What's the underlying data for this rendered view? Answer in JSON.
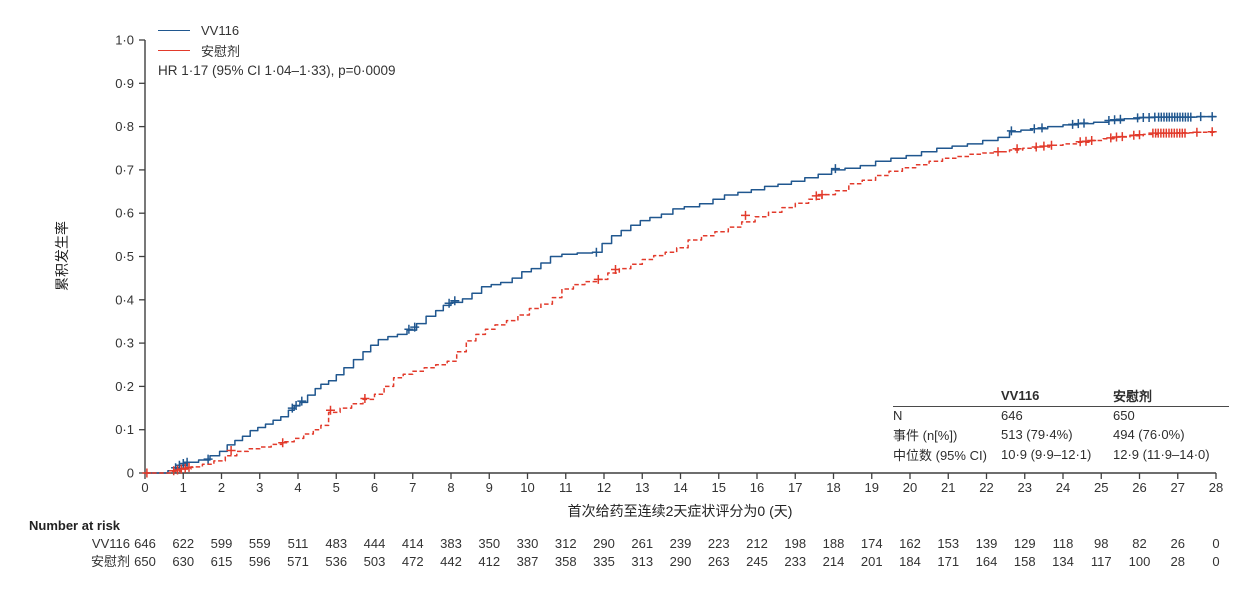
{
  "colors": {
    "vv116_blue": "#20578f",
    "placebo_red": "#e23a2b",
    "axis": "#3f3f3f",
    "text": "#333333"
  },
  "legend": {
    "items": [
      {
        "label": "VV116",
        "color": "#20578f",
        "style": "solid"
      },
      {
        "label": "安慰剂",
        "color": "#e23a2b",
        "style": "solid"
      }
    ]
  },
  "annotation": "HR 1·17 (95% CI 1·04–1·33), p=0·0009",
  "chart_data": {
    "type": "line",
    "subtype": "kaplan-meier-cumulative-incidence",
    "grid": false,
    "legend_position": "top-left",
    "x_axis": {
      "label": "首次给药至连续2天症状评分为0 (天)",
      "range": [
        0,
        28
      ],
      "ticks": [
        0,
        1,
        2,
        3,
        4,
        5,
        6,
        7,
        8,
        9,
        10,
        11,
        12,
        13,
        14,
        15,
        16,
        17,
        18,
        19,
        20,
        21,
        22,
        23,
        24,
        25,
        26,
        27,
        28
      ]
    },
    "y_axis": {
      "label": "累积发生率",
      "range": [
        0,
        1
      ],
      "tick_values": [
        0,
        0.1,
        0.2,
        0.3,
        0.4,
        0.5,
        0.6,
        0.7,
        0.8,
        0.9,
        1.0
      ],
      "tick_labels": [
        "0",
        "0·1",
        "0·2",
        "0·3",
        "0·4",
        "0·5",
        "0·6",
        "0·7",
        "0·8",
        "0·9",
        "1·0"
      ]
    },
    "series": [
      {
        "name": "VV116",
        "color": "#20578f",
        "dash": "solid",
        "points": [
          [
            0,
            0
          ],
          [
            0.6,
            0.005
          ],
          [
            0.8,
            0.01
          ],
          [
            0.95,
            0.018
          ],
          [
            1.1,
            0.025
          ],
          [
            1.4,
            0.03
          ],
          [
            1.7,
            0.04
          ],
          [
            1.95,
            0.05
          ],
          [
            2.15,
            0.065
          ],
          [
            2.35,
            0.075
          ],
          [
            2.55,
            0.085
          ],
          [
            2.75,
            0.098
          ],
          [
            2.95,
            0.105
          ],
          [
            3.15,
            0.113
          ],
          [
            3.35,
            0.122
          ],
          [
            3.55,
            0.13
          ],
          [
            3.75,
            0.145
          ],
          [
            3.9,
            0.155
          ],
          [
            4.05,
            0.163
          ],
          [
            4.25,
            0.18
          ],
          [
            4.45,
            0.195
          ],
          [
            4.6,
            0.205
          ],
          [
            4.8,
            0.213
          ],
          [
            5.0,
            0.227
          ],
          [
            5.2,
            0.243
          ],
          [
            5.45,
            0.262
          ],
          [
            5.7,
            0.28
          ],
          [
            5.9,
            0.295
          ],
          [
            6.1,
            0.308
          ],
          [
            6.35,
            0.315
          ],
          [
            6.6,
            0.32
          ],
          [
            6.85,
            0.33
          ],
          [
            7.1,
            0.345
          ],
          [
            7.35,
            0.362
          ],
          [
            7.6,
            0.375
          ],
          [
            7.8,
            0.387
          ],
          [
            8.0,
            0.394
          ],
          [
            8.3,
            0.402
          ],
          [
            8.55,
            0.415
          ],
          [
            8.8,
            0.43
          ],
          [
            9.05,
            0.435
          ],
          [
            9.3,
            0.44
          ],
          [
            9.6,
            0.45
          ],
          [
            9.85,
            0.465
          ],
          [
            10.1,
            0.472
          ],
          [
            10.35,
            0.485
          ],
          [
            10.6,
            0.5
          ],
          [
            10.9,
            0.505
          ],
          [
            11.3,
            0.508
          ],
          [
            11.7,
            0.51
          ],
          [
            11.95,
            0.53
          ],
          [
            12.2,
            0.548
          ],
          [
            12.45,
            0.56
          ],
          [
            12.7,
            0.572
          ],
          [
            12.95,
            0.583
          ],
          [
            13.2,
            0.59
          ],
          [
            13.5,
            0.598
          ],
          [
            13.8,
            0.61
          ],
          [
            14.1,
            0.615
          ],
          [
            14.5,
            0.622
          ],
          [
            14.85,
            0.632
          ],
          [
            15.15,
            0.642
          ],
          [
            15.5,
            0.648
          ],
          [
            15.85,
            0.654
          ],
          [
            16.2,
            0.662
          ],
          [
            16.55,
            0.667
          ],
          [
            16.9,
            0.674
          ],
          [
            17.25,
            0.682
          ],
          [
            17.6,
            0.69
          ],
          [
            17.95,
            0.7
          ],
          [
            18.3,
            0.704
          ],
          [
            18.7,
            0.71
          ],
          [
            19.1,
            0.72
          ],
          [
            19.5,
            0.727
          ],
          [
            19.9,
            0.733
          ],
          [
            20.3,
            0.742
          ],
          [
            20.7,
            0.75
          ],
          [
            21.1,
            0.755
          ],
          [
            21.5,
            0.76
          ],
          [
            21.9,
            0.768
          ],
          [
            22.3,
            0.775
          ],
          [
            22.6,
            0.788
          ],
          [
            22.9,
            0.792
          ],
          [
            23.2,
            0.795
          ],
          [
            23.6,
            0.8
          ],
          [
            24.0,
            0.804
          ],
          [
            24.4,
            0.807
          ],
          [
            24.8,
            0.81
          ],
          [
            25.2,
            0.814
          ],
          [
            25.6,
            0.818
          ],
          [
            26.0,
            0.821
          ],
          [
            26.4,
            0.822
          ],
          [
            27.0,
            0.822
          ],
          [
            27.5,
            0.823
          ],
          [
            28,
            0.823
          ]
        ],
        "censor_marks": [
          [
            0.8,
            0.012
          ],
          [
            0.9,
            0.018
          ],
          [
            1.0,
            0.022
          ],
          [
            1.1,
            0.025
          ],
          [
            1.65,
            0.032
          ],
          [
            3.85,
            0.15
          ],
          [
            3.95,
            0.156
          ],
          [
            4.1,
            0.166
          ],
          [
            6.9,
            0.332
          ],
          [
            7.05,
            0.337
          ],
          [
            7.95,
            0.392
          ],
          [
            8.1,
            0.398
          ],
          [
            11.8,
            0.51
          ],
          [
            18.05,
            0.703
          ],
          [
            22.65,
            0.79
          ],
          [
            23.25,
            0.795
          ],
          [
            23.45,
            0.797
          ],
          [
            24.25,
            0.805
          ],
          [
            24.4,
            0.807
          ],
          [
            24.55,
            0.808
          ],
          [
            25.2,
            0.814
          ],
          [
            25.35,
            0.816
          ],
          [
            25.5,
            0.817
          ],
          [
            25.95,
            0.82
          ],
          [
            26.1,
            0.821
          ],
          [
            26.25,
            0.821
          ],
          [
            26.4,
            0.822
          ],
          [
            26.5,
            0.822
          ],
          [
            26.57,
            0.822
          ],
          [
            26.64,
            0.822
          ],
          [
            26.71,
            0.822
          ],
          [
            26.78,
            0.822
          ],
          [
            26.85,
            0.822
          ],
          [
            26.92,
            0.822
          ],
          [
            26.99,
            0.822
          ],
          [
            27.06,
            0.822
          ],
          [
            27.13,
            0.822
          ],
          [
            27.2,
            0.822
          ],
          [
            27.27,
            0.822
          ],
          [
            27.34,
            0.822
          ],
          [
            27.6,
            0.823
          ],
          [
            27.9,
            0.823
          ]
        ]
      },
      {
        "name": "安慰剂",
        "color": "#e23a2b",
        "dash": "dashed",
        "points": [
          [
            0,
            0
          ],
          [
            0.7,
            0.004
          ],
          [
            0.95,
            0.009
          ],
          [
            1.2,
            0.014
          ],
          [
            1.5,
            0.02
          ],
          [
            1.8,
            0.028
          ],
          [
            2.1,
            0.04
          ],
          [
            2.4,
            0.05
          ],
          [
            2.7,
            0.056
          ],
          [
            3.0,
            0.06
          ],
          [
            3.3,
            0.066
          ],
          [
            3.6,
            0.072
          ],
          [
            3.9,
            0.08
          ],
          [
            4.15,
            0.09
          ],
          [
            4.4,
            0.1
          ],
          [
            4.6,
            0.11
          ],
          [
            4.8,
            0.14
          ],
          [
            5.1,
            0.15
          ],
          [
            5.4,
            0.16
          ],
          [
            5.7,
            0.17
          ],
          [
            6.0,
            0.182
          ],
          [
            6.25,
            0.2
          ],
          [
            6.5,
            0.22
          ],
          [
            6.75,
            0.228
          ],
          [
            7.0,
            0.235
          ],
          [
            7.3,
            0.243
          ],
          [
            7.6,
            0.25
          ],
          [
            7.9,
            0.258
          ],
          [
            8.15,
            0.28
          ],
          [
            8.4,
            0.305
          ],
          [
            8.65,
            0.32
          ],
          [
            8.9,
            0.332
          ],
          [
            9.15,
            0.342
          ],
          [
            9.45,
            0.352
          ],
          [
            9.75,
            0.365
          ],
          [
            10.05,
            0.38
          ],
          [
            10.35,
            0.39
          ],
          [
            10.65,
            0.405
          ],
          [
            10.9,
            0.425
          ],
          [
            11.2,
            0.435
          ],
          [
            11.5,
            0.442
          ],
          [
            11.8,
            0.447
          ],
          [
            12.1,
            0.462
          ],
          [
            12.4,
            0.472
          ],
          [
            12.7,
            0.482
          ],
          [
            13.0,
            0.493
          ],
          [
            13.3,
            0.502
          ],
          [
            13.6,
            0.51
          ],
          [
            13.9,
            0.52
          ],
          [
            14.2,
            0.538
          ],
          [
            14.55,
            0.548
          ],
          [
            14.9,
            0.557
          ],
          [
            15.25,
            0.568
          ],
          [
            15.6,
            0.58
          ],
          [
            15.95,
            0.592
          ],
          [
            16.3,
            0.602
          ],
          [
            16.65,
            0.613
          ],
          [
            17.0,
            0.623
          ],
          [
            17.35,
            0.632
          ],
          [
            17.7,
            0.643
          ],
          [
            18.05,
            0.652
          ],
          [
            18.4,
            0.668
          ],
          [
            18.75,
            0.676
          ],
          [
            19.1,
            0.687
          ],
          [
            19.45,
            0.697
          ],
          [
            19.8,
            0.705
          ],
          [
            20.15,
            0.712
          ],
          [
            20.5,
            0.72
          ],
          [
            20.85,
            0.727
          ],
          [
            21.2,
            0.731
          ],
          [
            21.55,
            0.736
          ],
          [
            21.9,
            0.739
          ],
          [
            22.25,
            0.742
          ],
          [
            22.6,
            0.746
          ],
          [
            22.95,
            0.75
          ],
          [
            23.3,
            0.753
          ],
          [
            23.65,
            0.757
          ],
          [
            24.0,
            0.76
          ],
          [
            24.35,
            0.764
          ],
          [
            24.7,
            0.768
          ],
          [
            25.05,
            0.772
          ],
          [
            25.4,
            0.776
          ],
          [
            25.75,
            0.779
          ],
          [
            26.1,
            0.782
          ],
          [
            26.45,
            0.785
          ],
          [
            27.0,
            0.786
          ],
          [
            27.5,
            0.787
          ],
          [
            28,
            0.788
          ]
        ],
        "censor_marks": [
          [
            0.05,
            0.0
          ],
          [
            0.75,
            0.005
          ],
          [
            0.85,
            0.007
          ],
          [
            0.95,
            0.009
          ],
          [
            1.05,
            0.011
          ],
          [
            1.15,
            0.013
          ],
          [
            2.25,
            0.052
          ],
          [
            3.6,
            0.07
          ],
          [
            4.85,
            0.145
          ],
          [
            5.75,
            0.172
          ],
          [
            11.85,
            0.447
          ],
          [
            12.3,
            0.47
          ],
          [
            15.7,
            0.595
          ],
          [
            17.55,
            0.64
          ],
          [
            17.7,
            0.643
          ],
          [
            22.3,
            0.742
          ],
          [
            22.8,
            0.749
          ],
          [
            23.3,
            0.753
          ],
          [
            23.5,
            0.755
          ],
          [
            23.7,
            0.757
          ],
          [
            24.45,
            0.765
          ],
          [
            24.6,
            0.766
          ],
          [
            24.75,
            0.768
          ],
          [
            25.25,
            0.774
          ],
          [
            25.4,
            0.776
          ],
          [
            25.55,
            0.777
          ],
          [
            25.85,
            0.78
          ],
          [
            26.0,
            0.781
          ],
          [
            26.35,
            0.785
          ],
          [
            26.42,
            0.785
          ],
          [
            26.49,
            0.785
          ],
          [
            26.56,
            0.785
          ],
          [
            26.63,
            0.785
          ],
          [
            26.7,
            0.785
          ],
          [
            26.77,
            0.785
          ],
          [
            26.84,
            0.785
          ],
          [
            26.91,
            0.785
          ],
          [
            26.98,
            0.785
          ],
          [
            27.05,
            0.785
          ],
          [
            27.12,
            0.785
          ],
          [
            27.19,
            0.785
          ],
          [
            27.5,
            0.787
          ],
          [
            27.9,
            0.788
          ]
        ]
      }
    ]
  },
  "stats_table": {
    "headers": [
      "",
      "VV116",
      "安慰剂"
    ],
    "rows": [
      [
        "N",
        "646",
        "650"
      ],
      [
        "事件 (n[%])",
        "513 (79·4%)",
        "494 (76·0%)"
      ],
      [
        "中位数 (95% CI)",
        "10·9 (9·9–12·1)",
        "12·9 (11·9–14·0)"
      ]
    ]
  },
  "risk_table": {
    "title": "Number at risk",
    "rows": [
      {
        "label": "VV116",
        "values": [
          646,
          622,
          599,
          559,
          511,
          483,
          444,
          414,
          383,
          350,
          330,
          312,
          290,
          261,
          239,
          223,
          212,
          198,
          188,
          174,
          162,
          153,
          139,
          129,
          118,
          98,
          82,
          26,
          0
        ]
      },
      {
        "label": "安慰剂",
        "values": [
          650,
          630,
          615,
          596,
          571,
          536,
          503,
          472,
          442,
          412,
          387,
          358,
          335,
          313,
          290,
          263,
          245,
          233,
          214,
          201,
          184,
          171,
          164,
          158,
          134,
          117,
          100,
          28,
          0
        ]
      }
    ]
  }
}
